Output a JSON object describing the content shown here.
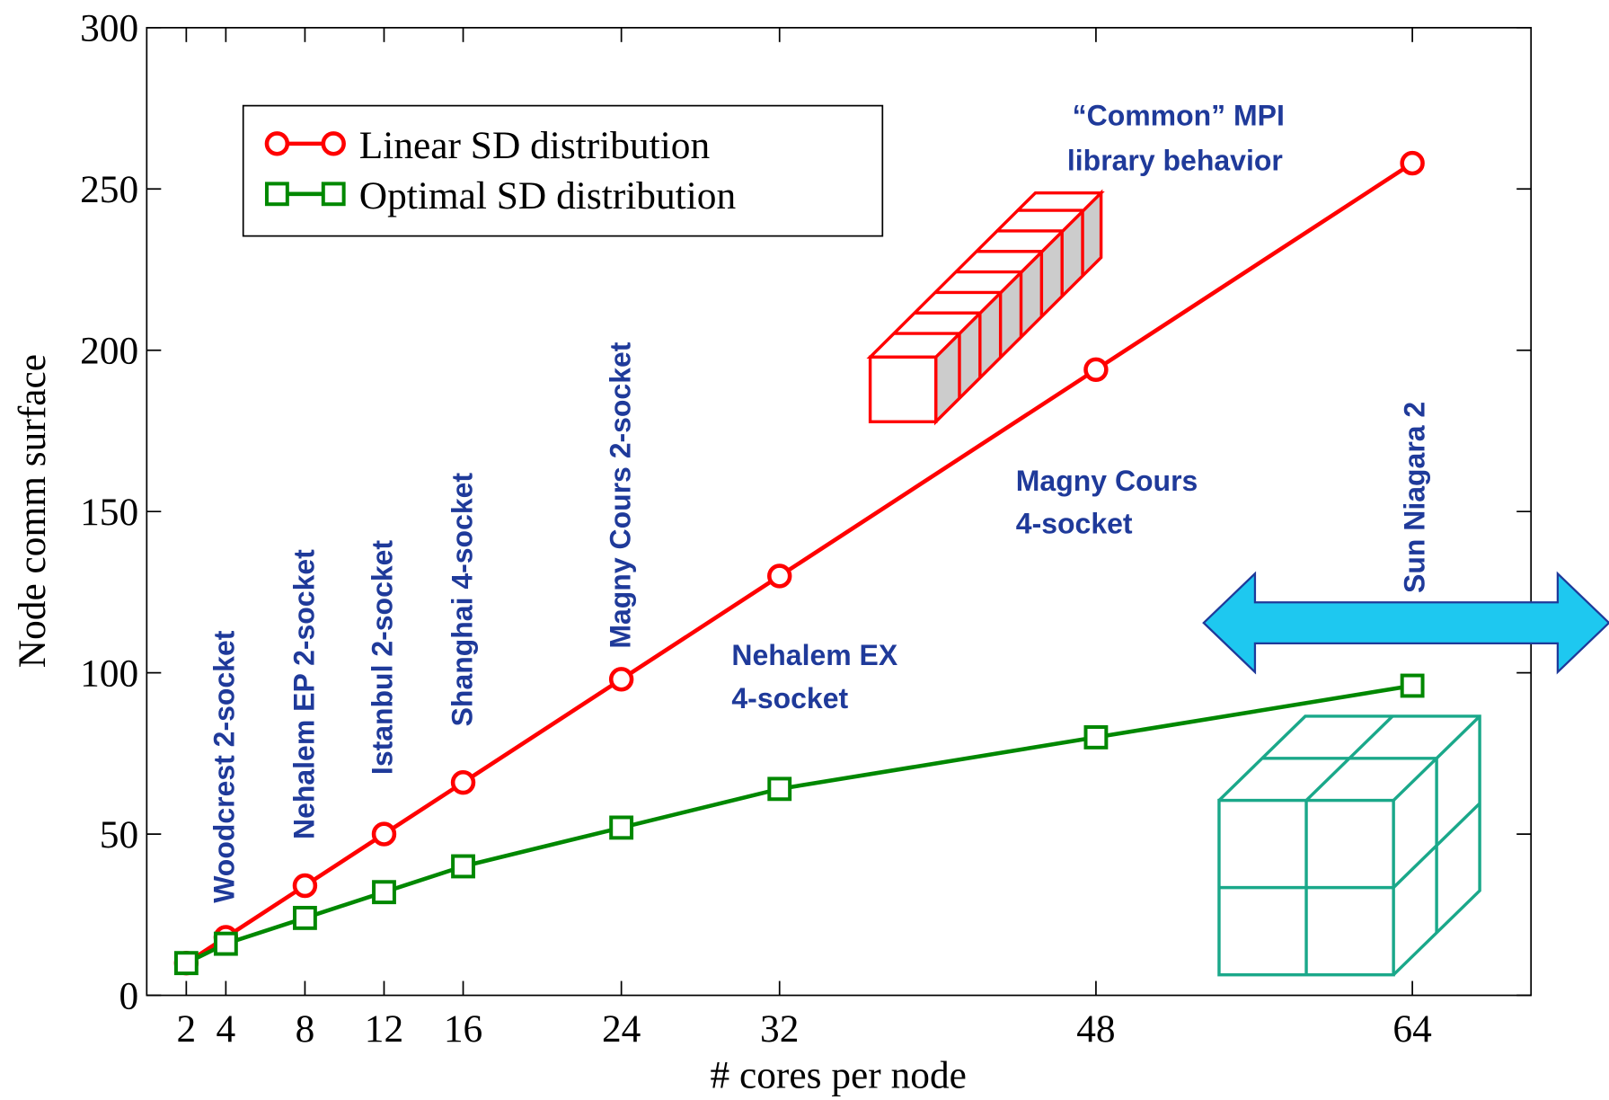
{
  "chart_data": {
    "type": "line",
    "xlabel": "# cores per node",
    "ylabel": "Node comm surface",
    "xlim": [
      0,
      70
    ],
    "ylim": [
      0,
      300
    ],
    "xticks": [
      2,
      4,
      8,
      12,
      16,
      24,
      32,
      48,
      64
    ],
    "yticks": [
      0,
      50,
      100,
      150,
      200,
      250,
      300
    ],
    "legend": "top-left",
    "series": [
      {
        "name": "Linear SD distribution",
        "color": "#ff0000",
        "marker": "circle",
        "x": [
          2,
          4,
          8,
          12,
          16,
          24,
          32,
          48,
          64
        ],
        "values": [
          10,
          18,
          34,
          50,
          66,
          98,
          130,
          194,
          258
        ]
      },
      {
        "name": "Optimal SD distribution",
        "color": "#008800",
        "marker": "square",
        "x": [
          2,
          4,
          8,
          12,
          16,
          24,
          32,
          48,
          64
        ],
        "values": [
          10,
          16,
          24,
          32,
          40,
          52,
          64,
          80,
          96
        ]
      }
    ],
    "annotations": [
      "Woodcrest  2-socket",
      "Nehalem EP 2-socket",
      "Istanbul 2-socket",
      "Shanghai 4-socket",
      "Magny Cours  2-socket",
      "Sun Niagara 2",
      "Nehalem EX",
      "4-socket",
      "Magny Cours",
      "4-socket",
      "“Common” MPI",
      "library behavior"
    ]
  }
}
